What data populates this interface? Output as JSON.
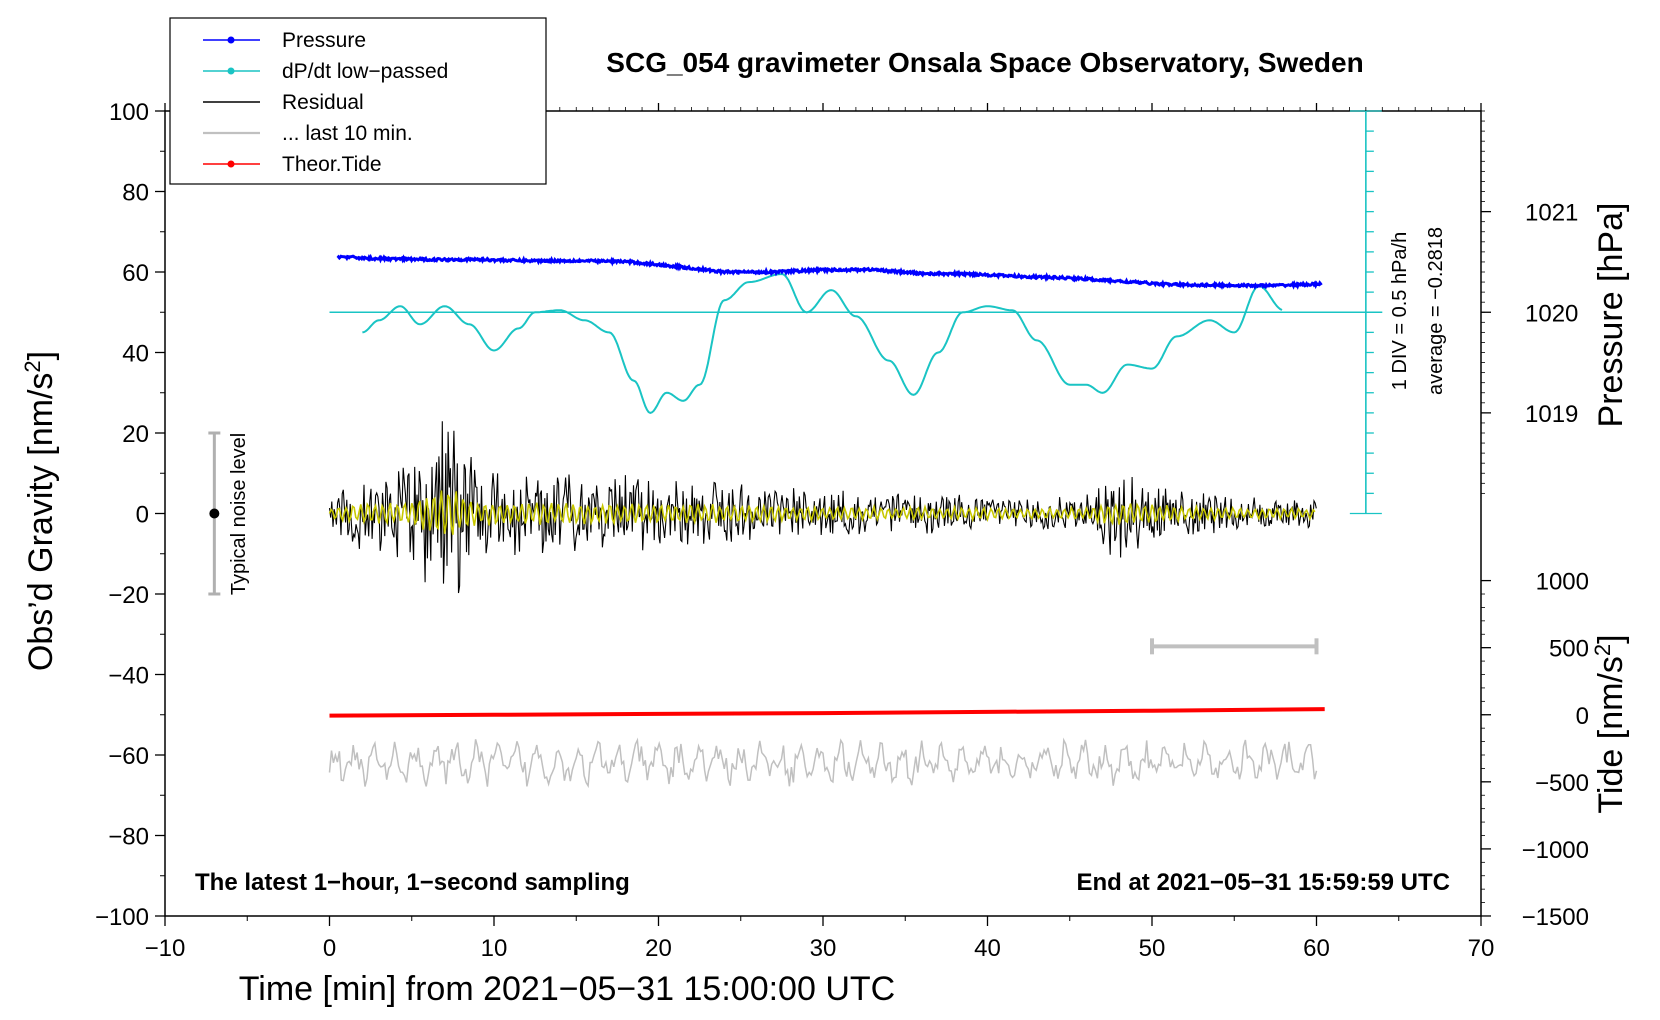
{
  "chart_data": {
    "type": "line",
    "title": "SCG_054 gravimeter Onsala Space Observatory, Sweden",
    "xlabel": "Time [min] from 2021−05−31 15:00:00 UTC",
    "ylabel_left": "Obs’d Gravity [nm/s²]",
    "ylabel_pressure": "Pressure [hPa]",
    "ylabel_tide": "Tide [nm/s²]",
    "xlim": [
      -10,
      70
    ],
    "ylim": [
      -100,
      100
    ],
    "x_ticks": [
      -10,
      0,
      10,
      20,
      30,
      40,
      50,
      60,
      70
    ],
    "x_tick_labels": [
      "−10",
      "0",
      "10",
      "20",
      "30",
      "40",
      "50",
      "60",
      "70"
    ],
    "y_ticks": [
      -100,
      -80,
      -60,
      -40,
      -20,
      0,
      20,
      40,
      60,
      80,
      100
    ],
    "y_tick_labels": [
      "−100",
      "−80",
      "−60",
      "−40",
      "−20",
      "0",
      "20",
      "40",
      "60",
      "80",
      "100"
    ],
    "pressure_axis": {
      "ticks_hpa": [
        1019,
        1020,
        1021
      ],
      "tick_labels": [
        "1019",
        "1020",
        "1021"
      ],
      "left_value_at_1020": 50,
      "left_units_per_hpa": 25
    },
    "tide_axis": {
      "ticks": [
        -1500,
        -1000,
        -500,
        0,
        500,
        1000
      ],
      "tick_labels": [
        "−1500",
        "−1000",
        "−500",
        "0",
        "500",
        "1000"
      ],
      "left_value_at_zero": -50,
      "left_units_per_unit": 0.03333
    },
    "dpdt_scale": {
      "x": 63,
      "y_range": [
        0,
        100
      ],
      "label_div": "1 DIV = 0.5 hPa/h",
      "label_avg": "average = −0.2818",
      "baseline_y": 50
    },
    "noise_bar": {
      "x": -7,
      "y_center": 0,
      "y_range": [
        -20,
        20
      ],
      "label": "Typical noise level"
    },
    "last10_bar": {
      "x_range": [
        50,
        60
      ],
      "y": -33
    },
    "note_left": "The latest 1−hour, 1−second sampling",
    "note_right": "End at 2021−05−31 15:59:59 UTC",
    "legend": [
      {
        "label": "Pressure",
        "color": "#0000ff",
        "marker": true
      },
      {
        "label": "dP/dt low−passed",
        "color": "#1ac4c4",
        "marker": true
      },
      {
        "label": "Residual",
        "color": "#000000",
        "marker": false
      },
      {
        "label": "... last 10 min.",
        "color": "#c0c0c0",
        "marker": false
      },
      {
        "label": "Theor.Tide",
        "color": "#ff0000",
        "marker": true
      }
    ],
    "series": [
      {
        "name": "Pressure",
        "color": "#0000ff",
        "unit": "left",
        "x": [
          0.5,
          3,
          6,
          9,
          12,
          15,
          18,
          21,
          24,
          27,
          30,
          33,
          36,
          39,
          42,
          45,
          48,
          51,
          54,
          57,
          60.3
        ],
        "y": [
          63.8,
          63.3,
          63.1,
          63.1,
          62.8,
          62.8,
          62.6,
          61.4,
          60,
          60,
          60.5,
          60.6,
          59.6,
          59.5,
          58.9,
          58.5,
          57.7,
          56.9,
          56.7,
          56.6,
          57
        ]
      },
      {
        "name": "dP/dt low−passed",
        "color": "#1ac4c4",
        "unit": "left",
        "x": [
          2,
          3,
          4.3,
          5.5,
          7,
          8.5,
          10,
          11.5,
          12.5,
          14,
          15.5,
          17,
          18.5,
          19.5,
          20.5,
          21.5,
          22.5,
          24,
          25.5,
          27.5,
          29,
          30.5,
          32,
          34,
          35.5,
          37,
          38.5,
          40,
          41.5,
          43,
          45,
          46,
          47,
          48.5,
          50,
          51.5,
          53.5,
          55,
          56.5,
          58
        ],
        "y": [
          45,
          48,
          51.5,
          47,
          51.5,
          47,
          40.5,
          46,
          50,
          50.5,
          48,
          45,
          33,
          25,
          30,
          28,
          32,
          53,
          57.5,
          59.5,
          50,
          55.5,
          49,
          38,
          29.5,
          40,
          50,
          51.5,
          50.5,
          43,
          32,
          32,
          30,
          37,
          36,
          44,
          48,
          45,
          56.5,
          50.5
        ]
      },
      {
        "name": "Residual",
        "color": "#000000",
        "unit": "left",
        "envelope_x": [
          0,
          2,
          4,
          5.5,
          6.5,
          7.5,
          8.5,
          10,
          13,
          16,
          20,
          25,
          30,
          40,
          43,
          44,
          46,
          47,
          48,
          49,
          52,
          56,
          60
        ],
        "envelope_amp": [
          4,
          10,
          11,
          16,
          26,
          28,
          16,
          11,
          11,
          10,
          10,
          8,
          6,
          5,
          4,
          4,
          5,
          10,
          13,
          10,
          6,
          4,
          4
        ]
      },
      {
        "name": "Smoothed residual",
        "color": "#c8c800",
        "unit": "left"
      },
      {
        "name": "... last 10 min.",
        "color": "#c0c0c0",
        "unit": "left",
        "y_center": -62,
        "amplitude": 5
      },
      {
        "name": "Theor.Tide",
        "color": "#ff0000",
        "unit": "left",
        "x": [
          0,
          10,
          20,
          30,
          40,
          50,
          60.5
        ],
        "y": [
          -50.2,
          -50,
          -49.8,
          -49.6,
          -49.3,
          -49,
          -48.6
        ]
      }
    ]
  }
}
